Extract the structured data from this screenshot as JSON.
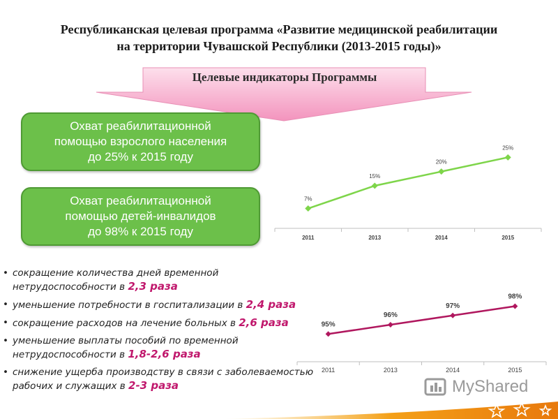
{
  "title": {
    "line1": "Республиканская целевая программа «Развитие медицинской реабилитации",
    "line2": "на территории Чувашской Республики (2013-2015 годы)»"
  },
  "banner": {
    "label": "Целевые индикаторы Программы"
  },
  "indicators": [
    {
      "line1": "Охват реабилитационной",
      "line2": "помощью взрослого населения",
      "line3": "до 25% к 2015 году"
    },
    {
      "line1": "Охват реабилитационной",
      "line2": "помощью детей-инвалидов",
      "line3": "до 98% к 2015 году"
    }
  ],
  "bullets": [
    {
      "text": "сокращение количества дней временной нетрудоспособности в ",
      "highlight": "2,3 раза"
    },
    {
      "text": "уменьшение потребности в госпитализации в ",
      "highlight": "2,4 раза"
    },
    {
      "text": "сокращение расходов на лечение больных в ",
      "highlight": "2,6 раза"
    },
    {
      "text": "уменьшение выплаты пособий по временной нетрудоспособности в ",
      "highlight": "1,8-2,6 раза"
    },
    {
      "text": "снижение ущерба производству в связи с заболеваемостью рабочих и служащих в ",
      "highlight": "2-3 раза"
    }
  ],
  "watermark": {
    "text": "MyShared"
  },
  "colors": {
    "green": "#6cc04a",
    "green_line": "#7ed54a",
    "magenta_line": "#b0175e",
    "highlight": "#c0176c",
    "banner_pink": "#f7a8c8"
  },
  "chart_data": [
    {
      "type": "line",
      "categories": [
        "2011",
        "2013",
        "2014",
        "2015"
      ],
      "series": [
        {
          "values": [
            7,
            15,
            20,
            25
          ]
        }
      ],
      "data_labels": [
        "7%",
        "15%",
        "20%",
        "25%"
      ],
      "ylim": [
        0,
        30
      ],
      "color": "#7ed54a"
    },
    {
      "type": "line",
      "categories": [
        "2011",
        "2013",
        "2014",
        "2015"
      ],
      "series": [
        {
          "values": [
            95,
            96,
            97,
            98
          ]
        }
      ],
      "data_labels": [
        "95%",
        "96%",
        "97%",
        "98%"
      ],
      "ylim": [
        92,
        100
      ],
      "color": "#b0175e"
    }
  ]
}
